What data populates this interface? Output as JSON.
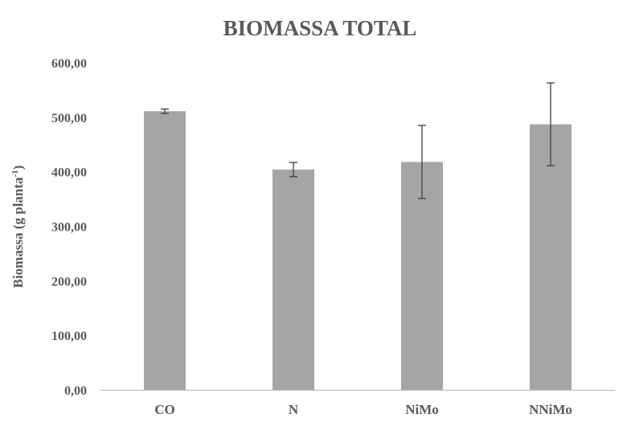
{
  "chart_data": {
    "type": "bar",
    "title": "BIOMASSA TOTAL",
    "ylabel_main": "Biomassa (g planta",
    "ylabel_sup": "-1",
    "ylabel_close": ")",
    "xlabel": "",
    "categories": [
      "CO",
      "N",
      "NiMo",
      "NNiMo"
    ],
    "values": [
      511,
      404,
      418,
      487
    ],
    "errors": [
      4,
      13,
      67,
      76
    ],
    "ylim": [
      0,
      600
    ],
    "yticks": [
      0,
      100,
      200,
      300,
      400,
      500,
      600
    ],
    "ytick_labels": [
      "0,00",
      "100,00",
      "200,00",
      "300,00",
      "400,00",
      "500,00",
      "600,00"
    ],
    "grid": false,
    "legend": "none",
    "colors": {
      "bar": "#a5a5a5",
      "error_bar": "#404040",
      "axis": "#bfbfbf",
      "text": "#595959"
    }
  }
}
